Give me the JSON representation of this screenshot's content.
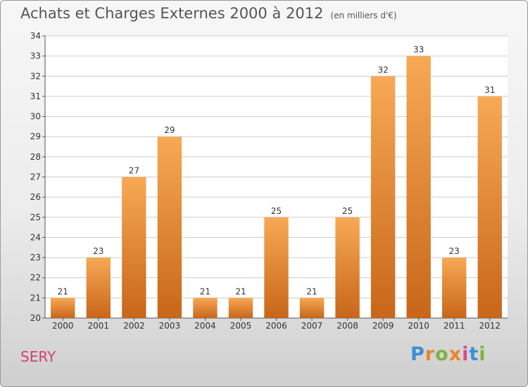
{
  "header": {
    "title": "Achats et Charges Externes 2000 à 2012",
    "subtitle": "(en milliers d'€)"
  },
  "footer": {
    "commune": "SERY",
    "brand_letters": [
      "P",
      "r",
      "o",
      "x",
      "i",
      "t",
      "i"
    ]
  },
  "colors": {
    "bar_top": "#f7a955",
    "bar_bottom": "#c8661a",
    "grid": "#cccccc",
    "axis": "#555555",
    "commune": "#d04070"
  },
  "chart_data": {
    "type": "bar",
    "title": "Achats et Charges Externes 2000 à 2012",
    "subtitle": "(en milliers d'€)",
    "xlabel": "",
    "ylabel": "",
    "categories": [
      "2000",
      "2001",
      "2002",
      "2003",
      "2004",
      "2005",
      "2006",
      "2007",
      "2008",
      "2009",
      "2010",
      "2011",
      "2012"
    ],
    "values": [
      21,
      23,
      27,
      29,
      21,
      21,
      25,
      21,
      25,
      32,
      33,
      23,
      31
    ],
    "ylim": [
      20,
      34
    ],
    "yticks": [
      20,
      21,
      22,
      23,
      24,
      25,
      26,
      27,
      28,
      29,
      30,
      31,
      32,
      33,
      34
    ],
    "grid": true,
    "legend": "none"
  }
}
